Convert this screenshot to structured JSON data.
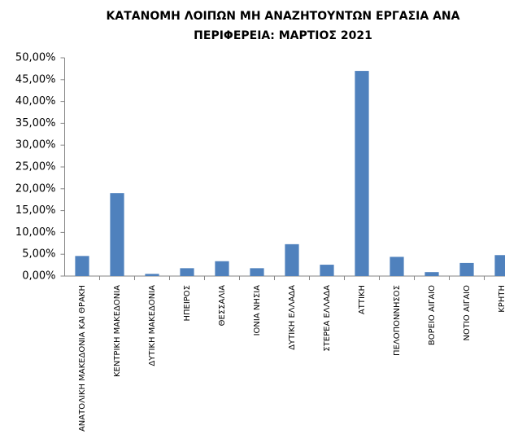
{
  "chart_data": {
    "type": "bar",
    "title": [
      "ΚΑΤΑΝΟΜΗ ΛΟΙΠΩΝ ΜΗ  ΑΝΑΖΗΤΟΥΝΤΩΝ ΕΡΓΑΣΙΑ ΑΝΑ",
      "ΠΕΡΙΦΕΡΕΙΑ: ΜΑΡΤΙΟΣ 2021"
    ],
    "categories": [
      "ΑΝΑΤΟΛΙΚΗ ΜΑΚΕΔΟΝΙΑ ΚΑΙ ΘΡΑΚΗ",
      "ΚΕΝΤΡΙΚΗ ΜΑΚΕΔΟΝΙΑ",
      "ΔΥΤΙΚΗ ΜΑΚΕΔΟΝΙΑ",
      "ΗΠΕΙΡΟΣ",
      "ΘΕΣΣΑΛΙΑ",
      "ΙΟΝΙΑ ΝΗΣΙΑ",
      "ΔΥΤΙΚΗ ΕΛΛΑΔΑ",
      "ΣΤΕΡΕΑ ΕΛΛΑΔΑ",
      "ΑΤΤΙΚΗ",
      "ΠΕΛΟΠΟΝΝΗΣΟΣ",
      "ΒΟΡΕΙΟ ΑΙΓΑΙΟ",
      "ΝΟΤΙΟ ΑΙΓΑΙΟ",
      "ΚΡΗΤΗ"
    ],
    "values": [
      4.6,
      19.0,
      0.5,
      1.8,
      3.4,
      1.8,
      7.3,
      2.6,
      47.0,
      4.4,
      0.9,
      3.0,
      4.8
    ],
    "color": "#4f81bd",
    "ylim": [
      0,
      50
    ],
    "yticks": [
      {
        "value": 0,
        "label": "0,00%"
      },
      {
        "value": 5,
        "label": "5,00%"
      },
      {
        "value": 10,
        "label": "10,00%"
      },
      {
        "value": 15,
        "label": "15,00%"
      },
      {
        "value": 20,
        "label": "20,00%"
      },
      {
        "value": 25,
        "label": "25,00%"
      },
      {
        "value": 30,
        "label": "30,00%"
      },
      {
        "value": 35,
        "label": "35,00%"
      },
      {
        "value": 40,
        "label": "40,00%"
      },
      {
        "value": 45,
        "label": "45,00%"
      },
      {
        "value": 50,
        "label": "50,00%"
      }
    ],
    "grid": false
  }
}
